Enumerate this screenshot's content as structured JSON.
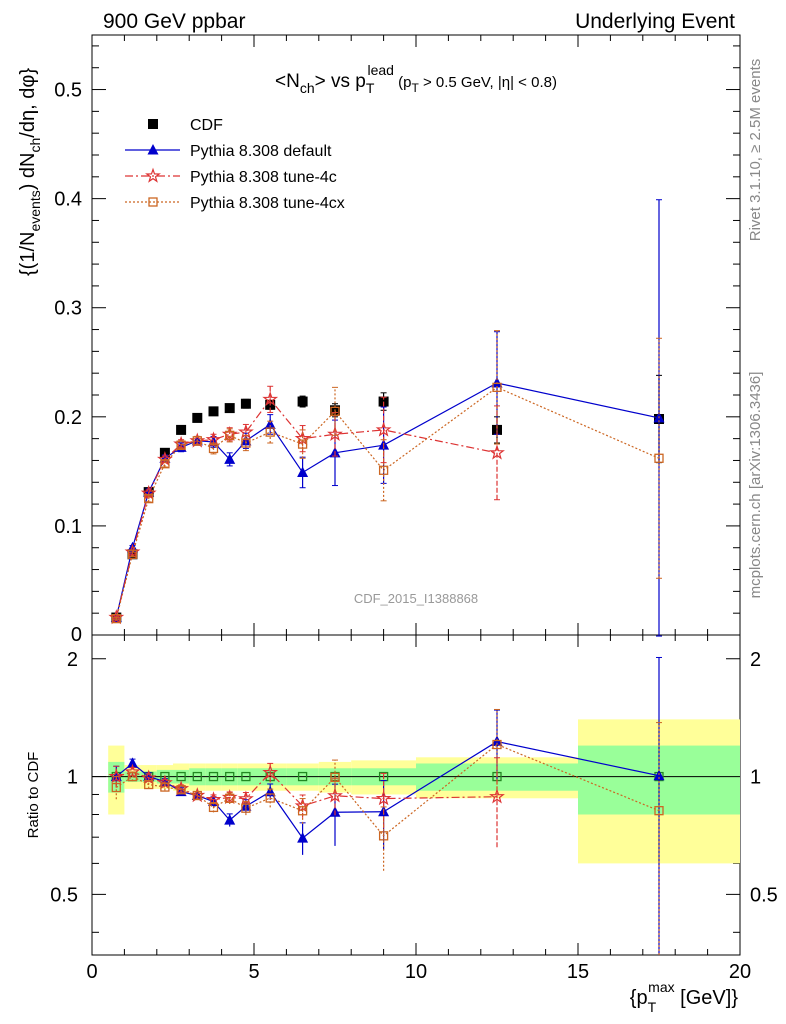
{
  "header": {
    "left": "900 GeV ppbar",
    "right": "Underlying Event"
  },
  "side": {
    "rivet": "Rivet 3.1.10, ≥ 2.5M events",
    "mcplots": "mcplots.cern.ch [arXiv:1306.3436]"
  },
  "watermark": "CDF_2015_I1388868",
  "chart_data": {
    "type": "scatter",
    "title": "<Nch> vs pT^lead (pT > 0.5 GeV, |η| < 0.8)",
    "ylabel": "{(1/Nevents) dNch/dη, dφ}",
    "xlabel": "{pT^max [GeV]}",
    "ratio_ylabel": "Ratio to CDF",
    "xlim": [
      0,
      20
    ],
    "ylim": [
      0,
      0.55
    ],
    "ratio_ylim": [
      0.35,
      2.3
    ],
    "ratio_log": true,
    "x_ticks": [
      "0",
      "5",
      "10",
      "15",
      "20"
    ],
    "y_ticks": [
      "0.1",
      "0.2",
      "0.3",
      "0.4",
      "0.5"
    ],
    "ratio_ticks": [
      "0.5",
      "1",
      "2"
    ],
    "legend_position": "top-left",
    "x": [
      0.75,
      1.25,
      1.75,
      2.25,
      2.75,
      3.25,
      3.75,
      4.25,
      4.75,
      5.5,
      6.5,
      7.5,
      9.0,
      12.5,
      17.5
    ],
    "series": [
      {
        "name": "CDF",
        "color": "#000000",
        "marker": "square",
        "values": [
          0.016,
          0.074,
          0.131,
          0.167,
          0.188,
          0.199,
          0.205,
          0.208,
          0.212,
          0.211,
          0.214,
          0.206,
          0.214,
          0.188,
          0.198
        ],
        "errors": [
          0.001,
          0.002,
          0.003,
          0.003,
          0.003,
          0.003,
          0.003,
          0.003,
          0.004,
          0.004,
          0.005,
          0.006,
          0.008,
          0.012,
          0.04
        ],
        "band_inner": [
          0.09,
          0.03,
          0.03,
          0.04,
          0.04,
          0.05,
          0.05,
          0.05,
          0.05,
          0.05,
          0.05,
          0.05,
          0.05,
          0.08,
          0.2
        ],
        "band_outer": [
          0.2,
          0.07,
          0.07,
          0.07,
          0.08,
          0.08,
          0.08,
          0.08,
          0.08,
          0.08,
          0.08,
          0.09,
          0.1,
          0.12,
          0.4
        ]
      },
      {
        "name": "Pythia 8.308 default",
        "color": "#0000cc",
        "marker": "triangle",
        "line": "solid",
        "values": [
          0.016,
          0.08,
          0.131,
          0.162,
          0.172,
          0.178,
          0.177,
          0.161,
          0.178,
          0.193,
          0.149,
          0.167,
          0.174,
          0.231,
          0.199
        ],
        "errors": [
          0.001,
          0.002,
          0.003,
          0.003,
          0.004,
          0.004,
          0.005,
          0.006,
          0.007,
          0.009,
          0.014,
          0.03,
          0.035,
          0.047,
          0.2
        ]
      },
      {
        "name": "Pythia 8.308 tune-4c",
        "color": "#dd3333",
        "marker": "star",
        "line": "dashdot",
        "values": [
          0.016,
          0.076,
          0.13,
          0.161,
          0.175,
          0.178,
          0.179,
          0.184,
          0.186,
          0.216,
          0.18,
          0.184,
          0.188,
          0.167,
          null
        ],
        "errors": [
          0.001,
          0.002,
          0.003,
          0.003,
          0.004,
          0.004,
          0.005,
          0.006,
          0.007,
          0.012,
          0.012,
          0.02,
          0.03,
          0.043,
          null
        ]
      },
      {
        "name": "Pythia 8.308 tune-4cx",
        "color": "#cc6622",
        "marker": "open-square",
        "line": "dotted",
        "values": [
          0.015,
          0.074,
          0.125,
          0.157,
          0.174,
          0.178,
          0.171,
          0.183,
          0.176,
          0.186,
          0.175,
          0.205,
          0.151,
          0.227,
          0.162
        ],
        "errors": [
          0.001,
          0.002,
          0.003,
          0.003,
          0.004,
          0.004,
          0.005,
          0.006,
          0.007,
          0.01,
          0.013,
          0.022,
          0.028,
          0.052,
          0.11
        ]
      }
    ]
  }
}
